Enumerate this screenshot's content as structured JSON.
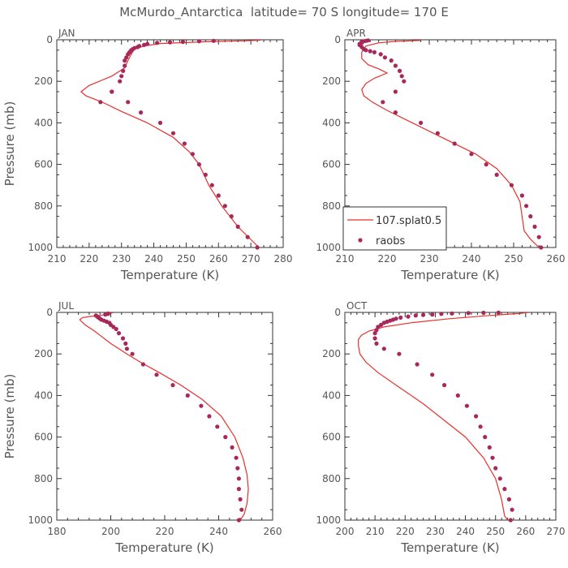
{
  "page_title": "McMurdo_Antarctica  latitude= 70 S longitude= 170 E",
  "legend": {
    "model_label": "107.splat0.5",
    "obs_label": "raobs"
  },
  "colors": {
    "model": "#e8302c",
    "obs": "#a8285a"
  },
  "chart_data": [
    {
      "type": "line",
      "title": "JAN",
      "xlabel": "Temperature (K)",
      "ylabel": "Pressure (mb)",
      "xlim": [
        210,
        280
      ],
      "xticks": [
        210,
        220,
        230,
        240,
        250,
        260,
        270,
        280
      ],
      "ylim": [
        1000,
        0
      ],
      "yticks": [
        0,
        200,
        400,
        600,
        800,
        1000
      ],
      "series": [
        {
          "name": "107.splat0.5",
          "kind": "line",
          "x": [
            272,
            266,
            261,
            257,
            254,
            251,
            246,
            238,
            230,
            224,
            219,
            217.5,
            220,
            227,
            231,
            232,
            233,
            234,
            237,
            242,
            255,
            268,
            273
          ],
          "y": [
            992,
            900,
            800,
            700,
            600,
            540,
            470,
            400,
            345,
            300,
            270,
            250,
            220,
            175,
            135,
            100,
            70,
            45,
            30,
            18,
            10,
            5,
            2
          ]
        },
        {
          "name": "raobs",
          "kind": "scatter",
          "x": [
            272,
            269,
            266,
            264,
            262,
            260,
            258,
            256,
            254,
            252,
            249.5,
            246,
            242,
            236,
            232,
            227,
            223.5,
            227,
            229.5,
            230,
            230.5,
            231,
            231,
            231.5,
            232,
            232.5,
            233,
            233.5,
            234,
            235,
            235.5,
            237,
            238,
            241,
            245,
            249,
            254,
            258.5
          ],
          "y": [
            1000,
            950,
            900,
            850,
            800,
            750,
            700,
            650,
            600,
            550,
            500,
            450,
            400,
            350,
            300,
            250,
            300,
            250,
            200,
            175,
            150,
            125,
            100,
            85,
            70,
            60,
            50,
            45,
            40,
            35,
            30,
            25,
            20,
            15,
            12,
            10,
            7,
            5
          ]
        }
      ]
    },
    {
      "type": "line",
      "title": "APR",
      "xlabel": "Temperature (K)",
      "ylabel": "Pressure (mb)",
      "xlim": [
        210,
        260
      ],
      "xticks": [
        210,
        220,
        230,
        240,
        250,
        260
      ],
      "ylim": [
        1000,
        0
      ],
      "yticks": [
        0,
        200,
        400,
        600,
        800,
        1000
      ],
      "series": [
        {
          "name": "107.splat0.5",
          "kind": "line",
          "x": [
            256,
            254,
            252.5,
            252,
            251.5,
            249.5,
            246,
            241,
            234,
            226,
            220,
            216.5,
            214.5,
            214,
            215,
            217,
            220,
            218,
            215.5,
            214,
            214,
            215,
            218,
            222,
            228
          ],
          "y": [
            1000,
            960,
            920,
            850,
            780,
            700,
            620,
            550,
            480,
            400,
            340,
            300,
            270,
            240,
            210,
            185,
            160,
            140,
            120,
            90,
            60,
            30,
            15,
            8,
            3
          ]
        },
        {
          "name": "raobs",
          "kind": "scatter",
          "x": [
            256.5,
            256,
            255,
            254,
            253,
            252,
            249.5,
            246,
            243.5,
            240,
            236,
            232,
            228,
            222,
            219,
            222,
            224,
            223.5,
            223,
            222,
            221,
            219.5,
            218.5,
            217,
            216,
            215,
            214.5,
            214,
            213.5,
            213.5,
            214,
            214,
            214.5,
            215,
            215.5
          ],
          "y": [
            1000,
            950,
            900,
            850,
            800,
            750,
            700,
            650,
            600,
            550,
            500,
            450,
            400,
            350,
            300,
            250,
            200,
            175,
            150,
            125,
            100,
            85,
            70,
            60,
            55,
            50,
            45,
            35,
            25,
            20,
            15,
            10,
            7,
            5,
            3
          ]
        }
      ]
    },
    {
      "type": "line",
      "title": "JUL",
      "xlabel": "Temperature (K)",
      "ylabel": "Pressure (mb)",
      "xlim": [
        180,
        260
      ],
      "xticks": [
        180,
        200,
        220,
        240,
        260
      ],
      "ylim": [
        1000,
        0
      ],
      "yticks": [
        0,
        200,
        400,
        600,
        800,
        1000
      ],
      "series": [
        {
          "name": "107.splat0.5",
          "kind": "line",
          "x": [
            248,
            249.5,
            250.5,
            251,
            250.5,
            249,
            246,
            241,
            234,
            226,
            218,
            211,
            206,
            203,
            200,
            197,
            194,
            190.5,
            188.5,
            189.5,
            192,
            196,
            199,
            201
          ],
          "y": [
            1000,
            970,
            920,
            850,
            780,
            700,
            600,
            500,
            420,
            350,
            290,
            240,
            200,
            175,
            150,
            120,
            90,
            60,
            35,
            25,
            20,
            15,
            8,
            0
          ]
        },
        {
          "name": "raobs",
          "kind": "scatter",
          "x": [
            247.5,
            248.5,
            248,
            247.5,
            247.5,
            247,
            246.5,
            245,
            242.5,
            239.5,
            236.5,
            233.5,
            228.5,
            223,
            217,
            212,
            208,
            206,
            205.5,
            204.5,
            203,
            202,
            201,
            200,
            199.5,
            198.5,
            197.5,
            196.5,
            196,
            195.5,
            195,
            194.5,
            198,
            199,
            199
          ],
          "y": [
            1000,
            950,
            900,
            850,
            800,
            750,
            700,
            650,
            600,
            550,
            500,
            450,
            400,
            350,
            300,
            250,
            200,
            175,
            150,
            125,
            100,
            80,
            70,
            60,
            50,
            45,
            40,
            35,
            30,
            25,
            20,
            15,
            10,
            7,
            5
          ]
        }
      ]
    },
    {
      "type": "line",
      "title": "OCT",
      "xlabel": "Temperature (K)",
      "ylabel": "Pressure (mb)",
      "xlim": [
        200,
        270
      ],
      "xticks": [
        200,
        210,
        220,
        230,
        240,
        250,
        260,
        270
      ],
      "ylim": [
        1000,
        0
      ],
      "yticks": [
        0,
        200,
        400,
        600,
        800,
        1000
      ],
      "series": [
        {
          "name": "107.splat0.5",
          "kind": "line",
          "x": [
            254,
            253,
            252,
            250,
            246,
            240,
            233,
            226,
            218,
            211,
            207,
            205,
            204.5,
            204.5,
            205.5,
            208,
            213,
            222,
            235,
            248,
            258,
            261
          ],
          "y": [
            1000,
            980,
            900,
            800,
            700,
            600,
            520,
            440,
            360,
            290,
            240,
            200,
            160,
            130,
            110,
            90,
            70,
            50,
            30,
            15,
            5,
            0
          ]
        },
        {
          "name": "raobs",
          "kind": "scatter",
          "x": [
            255,
            255.5,
            254.5,
            253,
            251.5,
            250,
            249,
            248,
            246.5,
            245,
            243.5,
            240.5,
            237.5,
            233,
            229,
            224,
            218,
            213,
            210.5,
            210,
            210,
            210.5,
            211,
            212,
            213,
            214,
            215,
            216,
            217,
            218.5,
            221,
            223.5,
            226,
            229,
            232,
            235.5,
            241,
            246,
            251
          ],
          "y": [
            1000,
            950,
            900,
            850,
            800,
            750,
            700,
            650,
            600,
            550,
            500,
            450,
            400,
            350,
            300,
            250,
            200,
            175,
            150,
            125,
            100,
            85,
            70,
            60,
            50,
            45,
            40,
            35,
            30,
            25,
            20,
            15,
            12,
            10,
            7,
            5,
            3,
            2,
            1
          ]
        }
      ]
    }
  ]
}
